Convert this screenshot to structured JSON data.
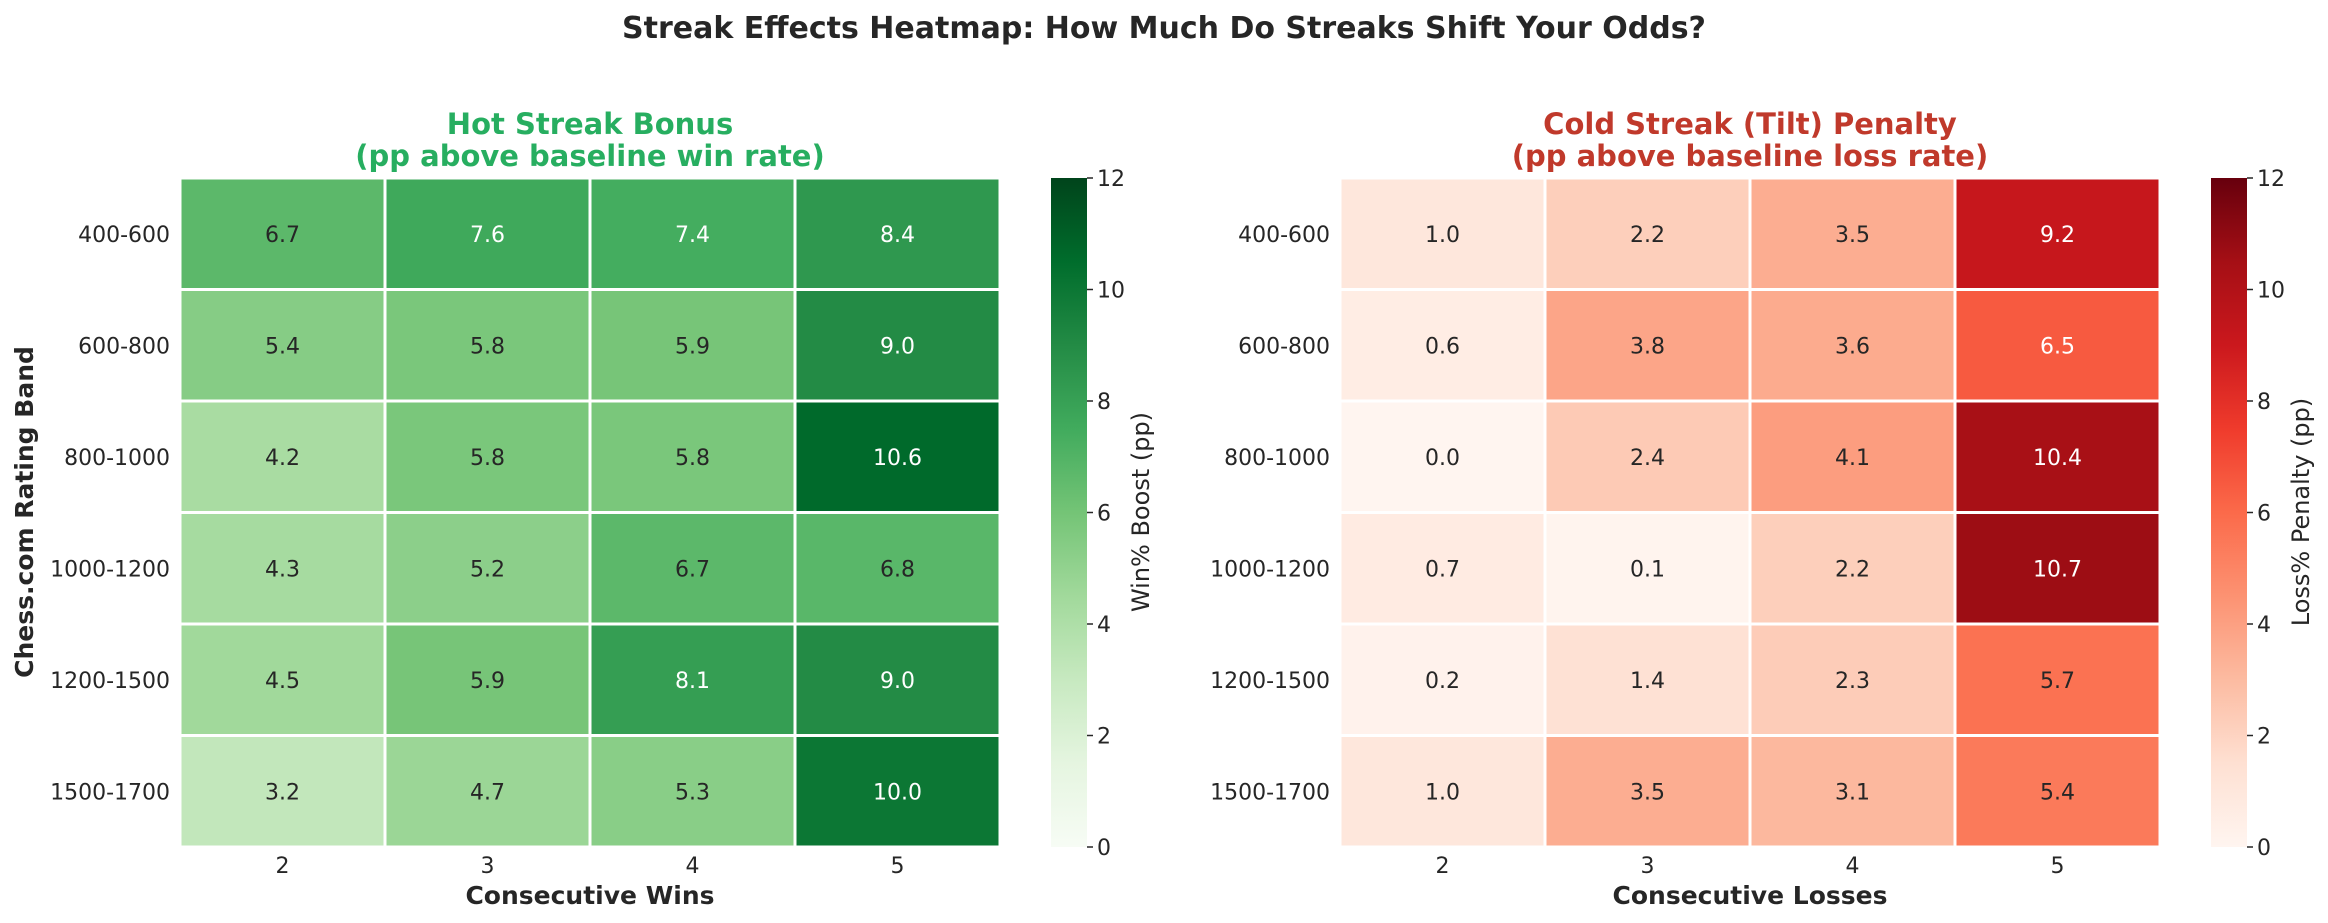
{
  "title": "Streak Effects Heatmap: How Much Do Streaks Shift Your Odds?",
  "colors": {
    "hot_title": "#27ae60",
    "cold_title": "#c0392b",
    "text": "#262626",
    "cell_border": "#ffffff"
  },
  "chart_data": [
    {
      "type": "heatmap",
      "title_line1": "Hot Streak Bonus",
      "title_line2": "(pp above baseline win rate)",
      "xlabel": "Consecutive Wins",
      "ylabel": "Chess.com Rating Band",
      "x": [
        "2",
        "3",
        "4",
        "5"
      ],
      "y": [
        "400-600",
        "600-800",
        "800-1000",
        "1000-1200",
        "1200-1500",
        "1500-1700"
      ],
      "values": [
        [
          6.7,
          7.6,
          7.4,
          8.4
        ],
        [
          5.4,
          5.8,
          5.9,
          9.0
        ],
        [
          4.2,
          5.8,
          5.8,
          10.6
        ],
        [
          4.3,
          5.2,
          6.7,
          6.8
        ],
        [
          4.5,
          5.9,
          8.1,
          9.0
        ],
        [
          3.2,
          4.7,
          5.3,
          10.0
        ]
      ],
      "colormap": "Greens",
      "vmin": 0,
      "vmax": 12,
      "colorbar_label": "Win% Boost (pp)",
      "colorbar_ticks": [
        0,
        2,
        4,
        6,
        8,
        10,
        12
      ]
    },
    {
      "type": "heatmap",
      "title_line1": "Cold Streak (Tilt) Penalty",
      "title_line2": "(pp above baseline loss rate)",
      "xlabel": "Consecutive Losses",
      "ylabel": "",
      "x": [
        "2",
        "3",
        "4",
        "5"
      ],
      "y": [
        "400-600",
        "600-800",
        "800-1000",
        "1000-1200",
        "1200-1500",
        "1500-1700"
      ],
      "values": [
        [
          1.0,
          2.2,
          3.5,
          9.2
        ],
        [
          0.6,
          3.8,
          3.6,
          6.5
        ],
        [
          0.0,
          2.4,
          4.1,
          10.4
        ],
        [
          0.7,
          0.1,
          2.2,
          10.7
        ],
        [
          0.2,
          1.4,
          2.3,
          5.7
        ],
        [
          1.0,
          3.5,
          3.1,
          5.4
        ]
      ],
      "colormap": "Reds",
      "vmin": 0,
      "vmax": 12,
      "colorbar_label": "Loss% Penalty (pp)",
      "colorbar_ticks": [
        0,
        2,
        4,
        6,
        8,
        10,
        12
      ]
    }
  ]
}
